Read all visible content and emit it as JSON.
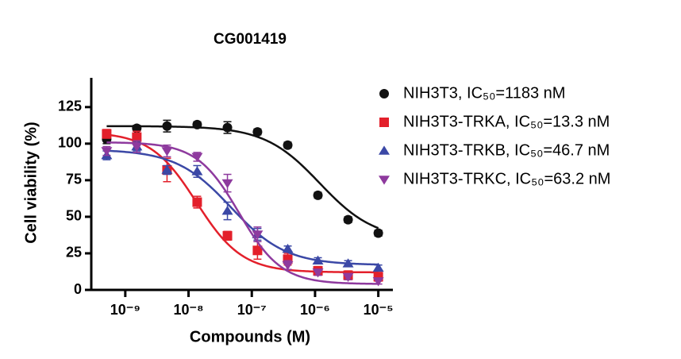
{
  "chart_data": {
    "type": "dose-response",
    "title": "CG001419",
    "xlabel": "Compounds (M)",
    "ylabel": "Cell viability (%)",
    "xscale": "log",
    "xlim": [
      2.9e-10,
      1.7e-05
    ],
    "ylim": [
      0,
      145
    ],
    "xticks": [
      {
        "value": 1e-09,
        "label": "10⁻⁹"
      },
      {
        "value": 1e-08,
        "label": "10⁻⁸"
      },
      {
        "value": 1e-07,
        "label": "10⁻⁷"
      },
      {
        "value": 1e-06,
        "label": "10⁻⁶"
      },
      {
        "value": 1e-05,
        "label": "10⁻⁵"
      }
    ],
    "yticks": [
      0,
      25,
      50,
      75,
      100,
      125
    ],
    "x": [
      5.08e-10,
      1.52e-09,
      4.57e-09,
      1.37e-08,
      4.12e-08,
      1.23e-07,
      3.7e-07,
      1.11e-06,
      3.33e-06,
      1e-05
    ],
    "legend": "right",
    "series": [
      {
        "name": "NIH3T3, IC₅₀=1183 nM",
        "color": "#111111",
        "marker": "circle",
        "values": [
          103,
          110.5,
          112,
          113,
          111,
          108,
          99,
          64.7,
          48,
          38.8
        ],
        "errors": [
          3,
          2,
          4,
          2,
          4,
          2,
          2,
          2,
          2,
          2
        ],
        "fit": {
          "top": 112,
          "bottom": 34,
          "ic50": 1.183e-06,
          "hill": 1.0
        }
      },
      {
        "name": "NIH3T3-TRKA, IC₅₀=13.3 nM",
        "color": "#e3202b",
        "marker": "square",
        "values": [
          106.7,
          104.5,
          82,
          60,
          37,
          27,
          21,
          13,
          10,
          9
        ],
        "errors": [
          3,
          4,
          8,
          4,
          3,
          6,
          4,
          3,
          3,
          3
        ],
        "fit": {
          "top": 108,
          "bottom": 12,
          "ic50": 1.33e-08,
          "hill": 1.2
        }
      },
      {
        "name": "NIH3T3-TRKB, IC₅₀=46.7 nM",
        "color": "#3b48a6",
        "marker": "triangle",
        "values": [
          92,
          98,
          82,
          81,
          54,
          38,
          28,
          20,
          18,
          15
        ],
        "errors": [
          3,
          3,
          3,
          4,
          6,
          4,
          2,
          2,
          2,
          2
        ],
        "fit": {
          "top": 96,
          "bottom": 17,
          "ic50": 4.67e-08,
          "hill": 1.0
        }
      },
      {
        "name": "NIH3T3-TRKC, IC₅₀=63.2 nM",
        "color": "#8e3a9e",
        "marker": "triangle-down",
        "values": [
          95,
          98,
          95,
          91,
          73,
          38,
          17,
          12,
          9,
          6
        ],
        "errors": [
          3,
          4,
          4,
          3,
          6,
          5,
          3,
          2,
          2,
          2
        ],
        "fit": {
          "top": 101,
          "bottom": 4,
          "ic50": 6.32e-08,
          "hill": 1.3
        }
      }
    ]
  }
}
